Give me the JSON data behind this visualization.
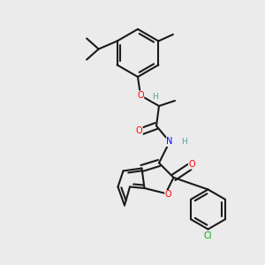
{
  "background_color": "#ebebeb",
  "bond_color": "#1a1a1a",
  "bond_width": 1.5,
  "atom_colors": {
    "O": "#ff0000",
    "N": "#0000ff",
    "Cl": "#00aa00",
    "H": "#5a9a9a",
    "C": "#1a1a1a"
  },
  "figsize": [
    3.0,
    3.0
  ],
  "dpi": 100
}
